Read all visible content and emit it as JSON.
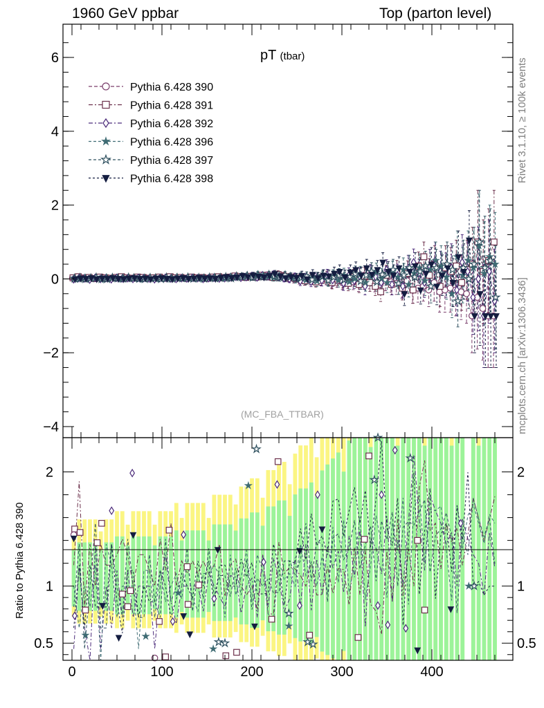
{
  "header": {
    "left": "1960 GeV ppbar",
    "right": "Top (parton level)"
  },
  "side_labels": {
    "rivet": "Rivet 3.1.10, ≥ 100k events",
    "mcplots": "mcplots.cern.ch [arXiv:1306.3436]"
  },
  "chart_data": [
    {
      "type": "scatter",
      "title": "pT",
      "title_suffix": "(tbar)",
      "watermark": "(MC_FBA_TTBAR)",
      "ylim": [
        -4.3,
        6.9
      ],
      "xlim": [
        -10,
        490
      ],
      "yticks": [
        -4,
        -2,
        0,
        2,
        4,
        6
      ],
      "yticklabels": [
        "−4",
        "−2",
        "0",
        "2",
        "4",
        "6"
      ],
      "legend_position": "top-left",
      "series": [
        {
          "name": "Pythia 6.428 390",
          "color": "#7a3d6b",
          "marker": "circle-open",
          "dash": "5,3"
        },
        {
          "name": "Pythia 6.428 391",
          "color": "#6b2f4a",
          "marker": "square-open",
          "dash": "6,3,2,3"
        },
        {
          "name": "Pythia 6.428 392",
          "color": "#4b2a7a",
          "marker": "diamond-open",
          "dash": "6,3,2,3"
        },
        {
          "name": "Pythia 6.428 396",
          "color": "#3e6b73",
          "marker": "star-filled",
          "dash": "4,3"
        },
        {
          "name": "Pythia 6.428 397",
          "color": "#2d4f5e",
          "marker": "star-open",
          "dash": "4,3"
        },
        {
          "name": "Pythia 6.428 398",
          "color": "#141d40",
          "marker": "triangle-down-filled",
          "dash": "3,3"
        }
      ],
      "x": [
        2,
        8,
        14,
        20,
        26,
        32,
        38,
        44,
        50,
        56,
        62,
        68,
        74,
        80,
        86,
        92,
        98,
        104,
        110,
        116,
        122,
        128,
        134,
        140,
        146,
        152,
        158,
        164,
        170,
        176,
        182,
        188,
        194,
        200,
        206,
        212,
        218,
        224,
        230,
        236,
        242,
        248,
        254,
        260,
        266,
        272,
        278,
        284,
        290,
        296,
        302,
        308,
        314,
        320,
        326,
        332,
        338,
        344,
        350,
        356,
        362,
        368,
        374,
        380,
        386,
        392,
        398,
        404,
        410,
        416,
        422,
        428,
        434,
        440,
        446,
        452,
        458,
        464,
        470
      ],
      "values": [
        [
          0.02,
          0.01,
          0.03,
          0.02,
          0.01,
          0.03,
          0.02,
          0.01,
          0.02,
          0.03,
          0.01,
          0.02,
          0.03,
          0.02,
          0.01,
          0.03,
          0.02,
          0.01,
          0.02,
          0.03,
          0.02,
          0.01,
          0.03,
          0.02,
          0.02,
          0.01,
          0.03,
          0.02,
          0.04,
          0.03,
          0.05,
          0.06,
          0.05,
          0.07,
          0.08,
          0.06,
          0.1,
          0.08,
          0.05,
          0.06,
          0.02,
          0.0,
          -0.02,
          -0.05,
          -0.03,
          -0.06,
          -0.02,
          0.0,
          -0.08,
          -0.05,
          -0.1,
          -0.06,
          -0.08,
          -0.12,
          -0.05,
          -0.03,
          -0.1,
          -0.15,
          -0.05,
          -0.08,
          -0.12,
          -0.2,
          -0.05,
          -0.3,
          -0.25,
          -0.2,
          -0.3,
          -0.1,
          -0.35,
          -0.3,
          -0.25,
          -0.3,
          -0.35,
          -0.4,
          -1.0,
          -0.5,
          -0.8,
          -1.0,
          -1.0
        ],
        [
          0.03,
          0.06,
          0.02,
          0.04,
          0.01,
          0.05,
          0.03,
          0.02,
          0.04,
          0.06,
          0.03,
          0.02,
          0.05,
          0.04,
          0.02,
          0.03,
          0.05,
          0.02,
          0.06,
          0.03,
          0.04,
          0.02,
          0.05,
          0.03,
          0.04,
          0.02,
          0.05,
          0.06,
          0.03,
          0.05,
          0.08,
          0.06,
          0.04,
          0.07,
          0.05,
          0.1,
          0.06,
          0.04,
          0.12,
          0.08,
          0.05,
          0.03,
          0.0,
          -0.05,
          0.02,
          -0.08,
          -0.04,
          0.05,
          -0.1,
          0.0,
          -0.05,
          -0.12,
          0.05,
          -0.15,
          0.08,
          -0.1,
          -0.2,
          -0.35,
          0.1,
          -0.15,
          0.2,
          -0.25,
          0.15,
          -0.3,
          0.35,
          0.6,
          0.1,
          0.4,
          -0.2,
          0.3,
          0.2,
          0.35,
          -0.1,
          0.25,
          0.4,
          1.0,
          0.2,
          0.5,
          1.0
        ],
        [
          -0.01,
          0.02,
          0.01,
          -0.02,
          0.03,
          0.0,
          0.02,
          -0.01,
          0.03,
          0.01,
          0.02,
          0.0,
          0.03,
          0.02,
          0.01,
          -0.01,
          0.02,
          0.03,
          0.01,
          0.0,
          0.02,
          0.01,
          0.03,
          0.02,
          0.0,
          0.02,
          0.03,
          0.01,
          0.02,
          0.04,
          0.06,
          0.03,
          0.05,
          0.08,
          0.04,
          0.1,
          0.07,
          0.12,
          0.06,
          0.02,
          0.0,
          0.05,
          -0.06,
          0.03,
          -0.08,
          0.0,
          -0.04,
          0.1,
          -0.03,
          0.05,
          -0.12,
          0.1,
          -0.05,
          0.08,
          -0.2,
          0.15,
          0.05,
          -0.1,
          0.25,
          -0.15,
          0.1,
          -0.2,
          0.3,
          0.45,
          0.15,
          -0.1,
          0.35,
          0.5,
          0.2,
          0.1,
          0.3,
          -0.3,
          0.45,
          0.2,
          -0.5,
          0.0,
          -1.0,
          0.2,
          -0.6
        ],
        [
          0.02,
          -0.01,
          0.03,
          0.01,
          0.02,
          -0.02,
          0.04,
          0.02,
          0.0,
          0.03,
          0.01,
          0.02,
          -0.01,
          0.03,
          0.02,
          0.01,
          0.03,
          0.0,
          0.02,
          0.04,
          0.01,
          0.03,
          0.02,
          0.0,
          0.03,
          0.02,
          0.05,
          0.03,
          0.01,
          0.06,
          0.04,
          0.07,
          0.09,
          0.05,
          0.12,
          0.08,
          0.06,
          0.03,
          0.09,
          0.07,
          0.04,
          0.0,
          0.06,
          -0.03,
          0.02,
          -0.06,
          0.05,
          -0.02,
          0.08,
          -0.04,
          0.1,
          -0.08,
          0.0,
          0.12,
          -0.1,
          0.05,
          0.18,
          0.02,
          -0.1,
          0.2,
          0.05,
          0.25,
          -0.15,
          0.15,
          0.3,
          -0.05,
          0.25,
          0.5,
          0.35,
          0.05,
          -0.4,
          0.6,
          0.1,
          0.5,
          0.3,
          0.9,
          0.15,
          0.6,
          0.4
        ],
        [
          0.01,
          0.03,
          0.0,
          0.02,
          0.04,
          0.01,
          0.0,
          0.03,
          0.02,
          0.01,
          0.04,
          0.02,
          0.01,
          0.0,
          0.03,
          0.02,
          0.0,
          0.04,
          0.01,
          0.03,
          0.02,
          0.04,
          0.01,
          0.03,
          0.01,
          0.04,
          0.02,
          0.03,
          0.05,
          0.02,
          0.07,
          0.05,
          0.08,
          0.04,
          0.09,
          0.06,
          0.11,
          0.07,
          0.04,
          0.1,
          0.06,
          0.02,
          0.03,
          0.07,
          -0.02,
          0.04,
          0.08,
          -0.04,
          0.05,
          0.1,
          -0.02,
          0.06,
          0.14,
          -0.06,
          0.1,
          0.2,
          -0.08,
          0.12,
          0.15,
          0.25,
          -0.12,
          0.1,
          0.3,
          0.05,
          0.2,
          0.35,
          -0.2,
          0.3,
          0.15,
          0.4,
          0.25,
          -0.6,
          0.3,
          0.0,
          0.4,
          1.0,
          0.3,
          0.5,
          -0.5
        ],
        [
          0.0,
          0.02,
          0.01,
          0.03,
          0.0,
          0.02,
          0.01,
          0.03,
          0.01,
          0.0,
          0.02,
          0.03,
          0.01,
          0.02,
          0.0,
          0.02,
          0.03,
          0.01,
          0.0,
          0.02,
          0.03,
          0.01,
          0.02,
          0.04,
          0.02,
          0.03,
          0.01,
          0.04,
          0.06,
          0.03,
          0.05,
          0.09,
          0.06,
          0.1,
          0.07,
          0.05,
          0.09,
          0.14,
          0.08,
          0.03,
          0.06,
          0.04,
          0.09,
          0.0,
          0.12,
          0.03,
          0.1,
          0.08,
          0.15,
          0.2,
          0.05,
          0.18,
          0.25,
          0.1,
          0.3,
          0.12,
          0.25,
          0.45,
          0.2,
          0.1,
          0.3,
          -0.4,
          0.2,
          0.35,
          -0.3,
          0.15,
          0.4,
          -0.2,
          0.1,
          0.3,
          -0.1,
          0.6,
          0.2,
          1.05,
          -1.0,
          -0.4,
          -1.0,
          -1.0,
          -1.0
        ]
      ],
      "errors": [
        0.03,
        0.03,
        0.03,
        0.03,
        0.03,
        0.03,
        0.03,
        0.03,
        0.04,
        0.04,
        0.04,
        0.04,
        0.04,
        0.04,
        0.04,
        0.04,
        0.04,
        0.04,
        0.04,
        0.05,
        0.05,
        0.05,
        0.05,
        0.05,
        0.05,
        0.05,
        0.06,
        0.06,
        0.06,
        0.06,
        0.07,
        0.07,
        0.07,
        0.08,
        0.08,
        0.08,
        0.09,
        0.09,
        0.1,
        0.1,
        0.1,
        0.11,
        0.12,
        0.12,
        0.13,
        0.14,
        0.15,
        0.16,
        0.17,
        0.18,
        0.19,
        0.2,
        0.21,
        0.22,
        0.23,
        0.24,
        0.25,
        0.26,
        0.27,
        0.28,
        0.3,
        0.32,
        0.34,
        0.36,
        0.38,
        0.4,
        0.45,
        0.5,
        0.55,
        0.6,
        0.65,
        0.7,
        0.75,
        0.8,
        1.0,
        1.4,
        1.4,
        1.4,
        1.4
      ]
    },
    {
      "type": "scatter",
      "ylabel": "Ratio to Pythia 6.428 390",
      "ylim": [
        0.35,
        2.3
      ],
      "xlim": [
        -10,
        490
      ],
      "yticks": [
        0.5,
        1,
        2
      ],
      "yticklabels": [
        "0.5",
        "1",
        "2"
      ],
      "xticks": [
        0,
        100,
        200,
        300,
        400
      ],
      "xticklabels": [
        "0",
        "100",
        "200",
        "300",
        "400"
      ],
      "band_colors": {
        "inner": "#9cf39a",
        "outer": "#fbf582"
      },
      "reference_line": 1,
      "markers": [
        {
          "series": 1,
          "x": 3,
          "y": 1.5
        },
        {
          "series": 1,
          "x": 9,
          "y": 1.47
        },
        {
          "series": 0,
          "x": 2,
          "y": 1.45
        },
        {
          "series": 5,
          "x": 2,
          "y": 1.42
        },
        {
          "series": 2,
          "x": 3,
          "y": 0.74
        },
        {
          "series": 1,
          "x": 15,
          "y": 0.79
        },
        {
          "series": 3,
          "x": 15,
          "y": 0.57
        },
        {
          "series": 1,
          "x": 28,
          "y": 1.38
        },
        {
          "series": 1,
          "x": 33,
          "y": 1.55
        },
        {
          "series": 5,
          "x": 34,
          "y": 0.83
        },
        {
          "series": 2,
          "x": 44,
          "y": 1.66
        },
        {
          "series": 5,
          "x": 52,
          "y": 0.55
        },
        {
          "series": 1,
          "x": 56,
          "y": 0.93
        },
        {
          "series": 1,
          "x": 62,
          "y": 0.82
        },
        {
          "series": 1,
          "x": 65,
          "y": 0.96
        },
        {
          "series": 2,
          "x": 67,
          "y": 1.99
        },
        {
          "series": 5,
          "x": 68,
          "y": 1.45
        },
        {
          "series": 3,
          "x": 82,
          "y": 0.56
        },
        {
          "series": 0,
          "x": 92,
          "y": 0.37
        },
        {
          "series": 1,
          "x": 97,
          "y": 0.69
        },
        {
          "series": 1,
          "x": 104,
          "y": 0.38
        },
        {
          "series": 1,
          "x": 108,
          "y": 1.49
        },
        {
          "series": 2,
          "x": 112,
          "y": 0.69
        },
        {
          "series": 3,
          "x": 118,
          "y": 0.94
        },
        {
          "series": 2,
          "x": 124,
          "y": 1.45
        },
        {
          "series": 1,
          "x": 128,
          "y": 1.17
        },
        {
          "series": 1,
          "x": 129,
          "y": 0.84
        },
        {
          "series": 5,
          "x": 124,
          "y": 0.74
        },
        {
          "series": 1,
          "x": 141,
          "y": 1.01
        },
        {
          "series": 5,
          "x": 131,
          "y": 0.58
        },
        {
          "series": 2,
          "x": 158,
          "y": 0.89
        },
        {
          "series": 5,
          "x": 162,
          "y": 1.32
        },
        {
          "series": 3,
          "x": 157,
          "y": 0.45
        },
        {
          "series": 4,
          "x": 163,
          "y": 0.51
        },
        {
          "series": 4,
          "x": 170,
          "y": 0.5
        },
        {
          "series": 1,
          "x": 171,
          "y": 0.39
        },
        {
          "series": 1,
          "x": 183,
          "y": 0.42
        },
        {
          "series": 3,
          "x": 196,
          "y": 1.88
        },
        {
          "series": 4,
          "x": 205,
          "y": 2.2
        },
        {
          "series": 5,
          "x": 203,
          "y": 0.65
        },
        {
          "series": 2,
          "x": 213,
          "y": 1.21
        },
        {
          "series": 1,
          "x": 222,
          "y": 0.71
        },
        {
          "series": 1,
          "x": 229,
          "y": 2.09
        },
        {
          "series": 2,
          "x": 228,
          "y": 1.89
        },
        {
          "series": 4,
          "x": 241,
          "y": 0.76
        },
        {
          "series": 3,
          "x": 241,
          "y": 0.65
        },
        {
          "series": 2,
          "x": 253,
          "y": 0.83
        },
        {
          "series": 5,
          "x": 253,
          "y": 1.31
        },
        {
          "series": 4,
          "x": 262,
          "y": 0.51
        },
        {
          "series": 4,
          "x": 268,
          "y": 0.49
        },
        {
          "series": 1,
          "x": 264,
          "y": 0.57
        },
        {
          "series": 2,
          "x": 273,
          "y": 1.8
        },
        {
          "series": 5,
          "x": 278,
          "y": 1.5
        },
        {
          "series": 1,
          "x": 325,
          "y": 1.41
        },
        {
          "series": 1,
          "x": 318,
          "y": 0.55
        },
        {
          "series": 1,
          "x": 330,
          "y": 2.14
        },
        {
          "series": 4,
          "x": 336,
          "y": 1.93
        },
        {
          "series": 2,
          "x": 344,
          "y": 1.8
        },
        {
          "series": 4,
          "x": 340,
          "y": 2.3
        },
        {
          "series": 2,
          "x": 340,
          "y": 0.83
        },
        {
          "series": 2,
          "x": 359,
          "y": 2.19
        },
        {
          "series": 2,
          "x": 351,
          "y": 0.66
        },
        {
          "series": 4,
          "x": 376,
          "y": 2.12
        },
        {
          "series": 1,
          "x": 384,
          "y": 1.4
        },
        {
          "series": 5,
          "x": 384,
          "y": 0.44
        },
        {
          "series": 2,
          "x": 371,
          "y": 0.63
        },
        {
          "series": 1,
          "x": 392,
          "y": 0.79
        },
        {
          "series": 5,
          "x": 421,
          "y": 0.8
        },
        {
          "series": 2,
          "x": 432,
          "y": 1.55
        },
        {
          "series": 3,
          "x": 441,
          "y": 1.0
        },
        {
          "series": 4,
          "x": 447,
          "y": 1.0
        }
      ]
    }
  ]
}
